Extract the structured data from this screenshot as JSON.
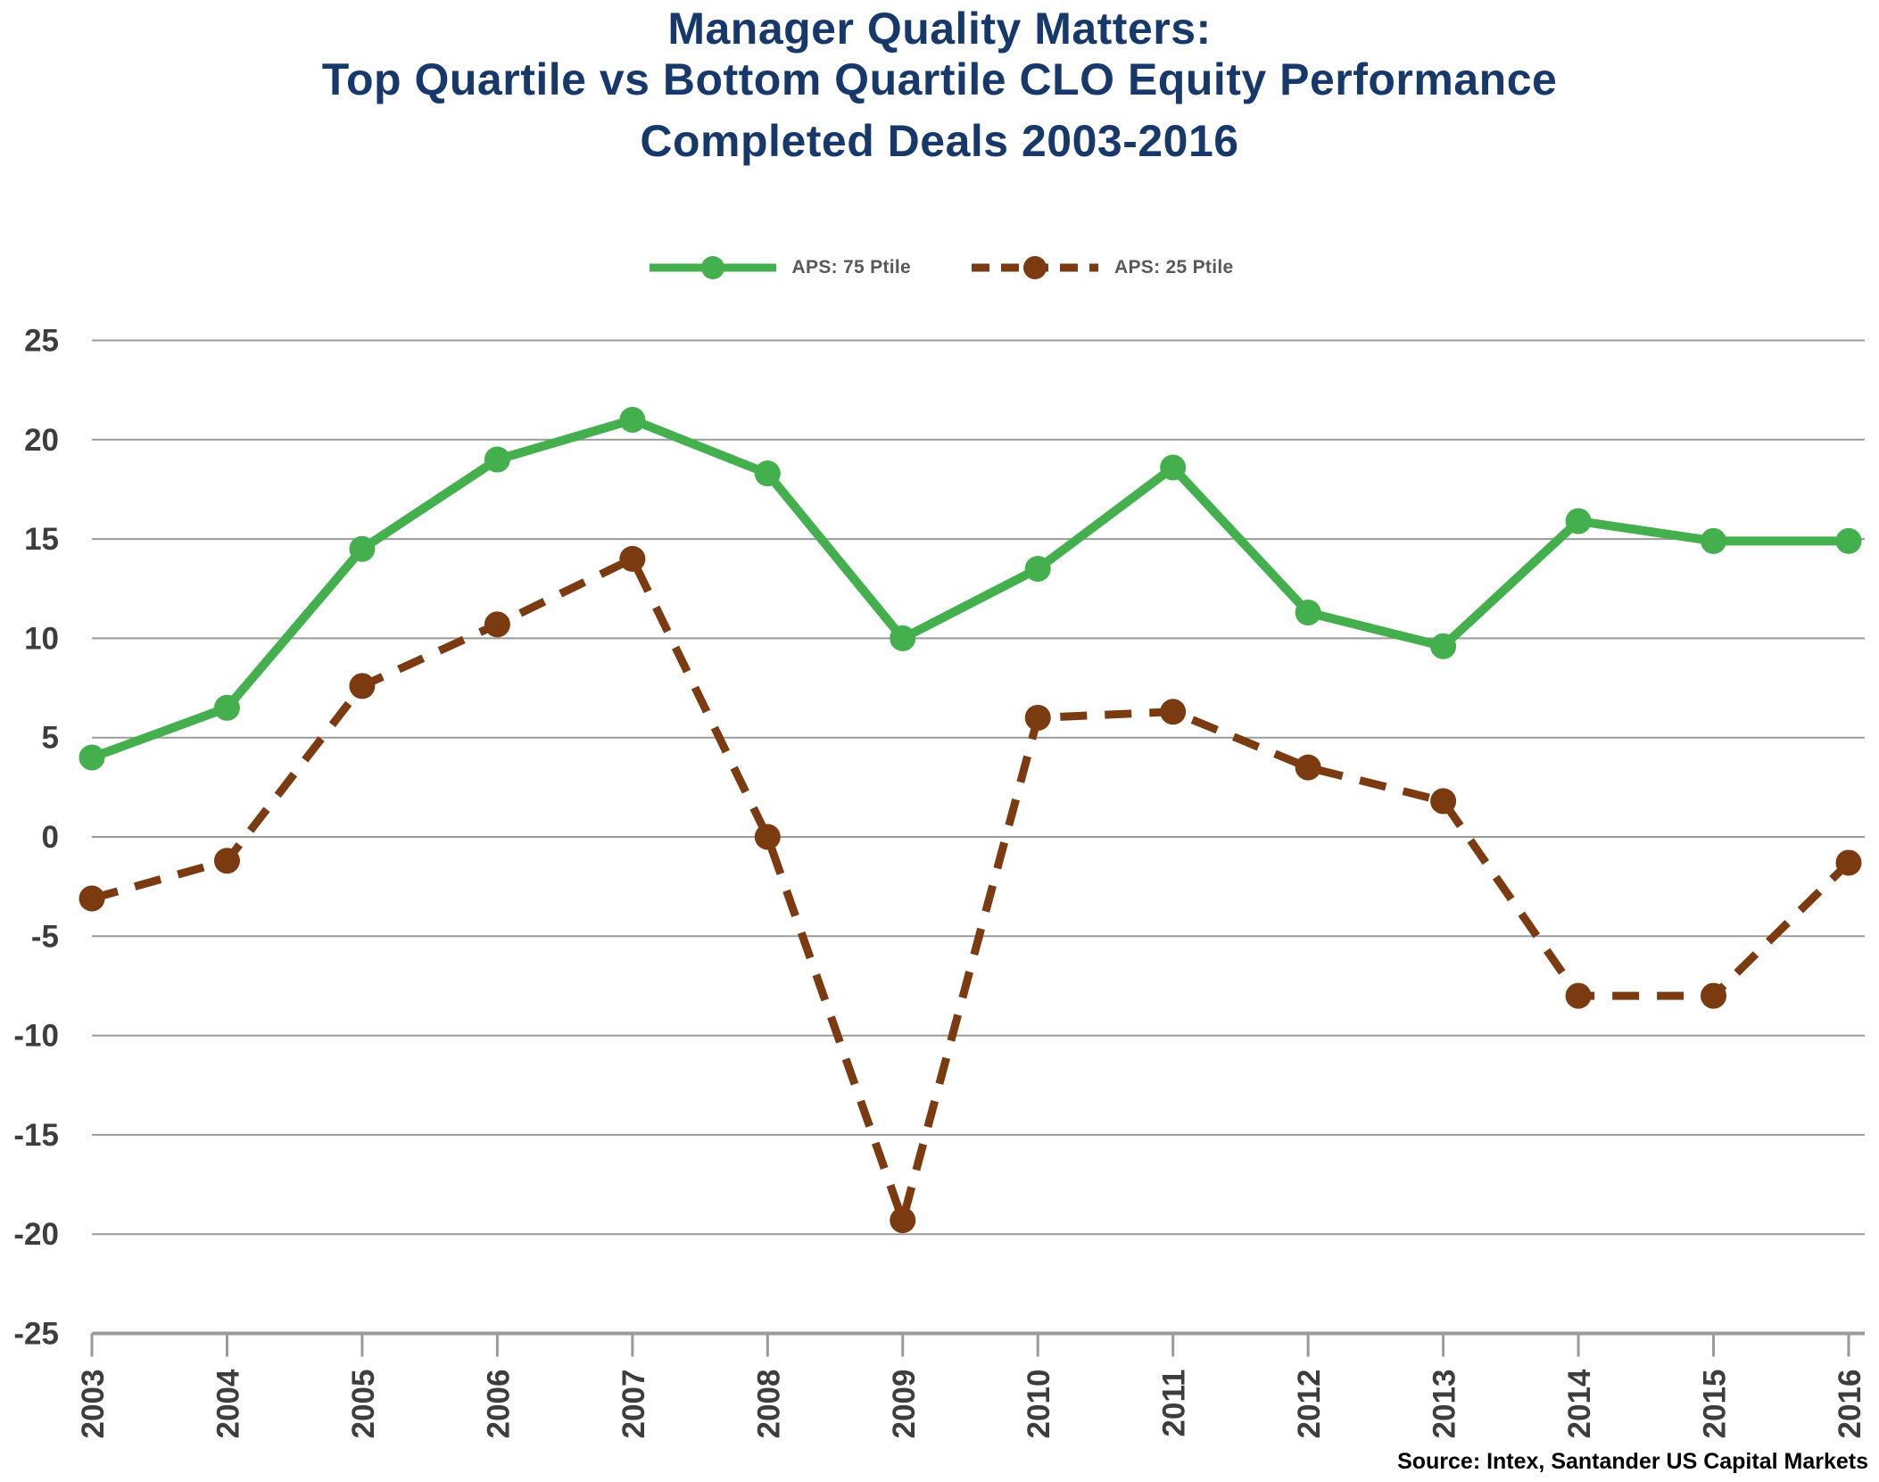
{
  "title": {
    "line1": "Manager Quality Matters:",
    "line2": "Top Quartile vs Bottom Quartile CLO Equity Performance",
    "line3": "Completed Deals 2003-2016"
  },
  "legend": [
    {
      "label": "APS: 75 Ptile",
      "color": "#44AF4D",
      "style": "solid"
    },
    {
      "label": "APS: 25 Ptile",
      "color": "#7B3A10",
      "style": "dashed"
    }
  ],
  "source_note": "Source: Intex, Santander US Capital Markets",
  "colors": {
    "title_navy": "#17386B",
    "series_green": "#44AF4D",
    "series_brown": "#7B3A10",
    "grid_gray": "#9A9A9A",
    "axis_gray": "#9A9A9A",
    "tick_label_gray": "#3D3D3D",
    "legend_text_gray": "#595959",
    "source_black": "#000000",
    "background": "#FFFFFF"
  },
  "chart_data": {
    "type": "line",
    "x": [
      2003,
      2004,
      2005,
      2006,
      2007,
      2008,
      2009,
      2010,
      2011,
      2012,
      2013,
      2014,
      2015,
      2016
    ],
    "series": [
      {
        "name": "APS: 75 Ptile",
        "color": "#44AF4D",
        "line_style": "solid",
        "marker": "circle",
        "values": [
          4.0,
          6.5,
          14.5,
          19.0,
          21.0,
          18.3,
          10.0,
          13.5,
          18.6,
          11.3,
          9.6,
          15.9,
          14.9,
          14.9
        ]
      },
      {
        "name": "APS: 25 Ptile",
        "color": "#7B3A10",
        "line_style": "dashed",
        "marker": "circle",
        "values": [
          -3.1,
          -1.2,
          7.6,
          10.7,
          14.0,
          0.0,
          -19.3,
          6.0,
          6.3,
          3.5,
          1.8,
          -8.0,
          -8.0,
          -1.3
        ]
      }
    ],
    "ylim": [
      -25,
      25
    ],
    "ytick_step": 5,
    "yticks": [
      25,
      20,
      15,
      10,
      5,
      0,
      -5,
      -10,
      -15,
      -20,
      -25
    ],
    "grid": true,
    "legend_position": "top-center",
    "x_label_rotation": -90
  }
}
